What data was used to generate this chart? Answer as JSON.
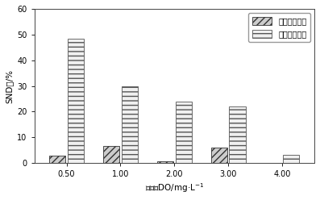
{
  "categories": [
    "0.50",
    "1.00",
    "2.00",
    "3.00",
    "4.00"
  ],
  "x_positions": [
    1,
    2,
    3,
    4,
    5
  ],
  "before_values": [
    3.0,
    6.5,
    0.8,
    6.0,
    0.0
  ],
  "after_values": [
    48.5,
    30.0,
    24.0,
    22.0,
    3.2
  ],
  "ylabel": "SND率/%",
  "xlabel": "溶解氧DO/mg·L-1",
  "ylim": [
    0,
    60
  ],
  "yticks": [
    0,
    10,
    20,
    30,
    40,
    50,
    60
  ],
  "legend_before": "投加纤维素前",
  "legend_after": "投加纤维素后",
  "bar_width": 0.3,
  "before_hatch": "////",
  "after_hatch": "---",
  "before_facecolor": "#cccccc",
  "after_facecolor": "#f0f0f0",
  "before_edgecolor": "#333333",
  "after_edgecolor": "#555555",
  "bg_color": "#ffffff",
  "fig_bg": "#ffffff",
  "spine_color": "#444444",
  "tick_fontsize": 7,
  "label_fontsize": 7.5,
  "legend_fontsize": 7
}
